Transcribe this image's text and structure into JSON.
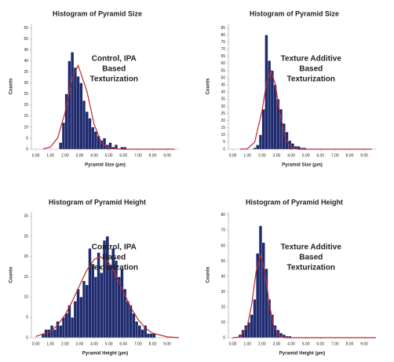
{
  "chart_data": [
    {
      "type": "histogram",
      "title": "Histogram of Pyramid Size",
      "annotation": [
        "Control, IPA",
        "Based",
        "Texturization"
      ],
      "xlabel": "Pyramid Size (µm)",
      "ylabel": "Counts",
      "color": "#1f2b6f",
      "bins": [
        1.6,
        1.8,
        2.0,
        2.2,
        2.4,
        2.6,
        2.8,
        3.0,
        3.2,
        3.4,
        3.6,
        3.8,
        4.0,
        4.2,
        4.4,
        4.6,
        4.8,
        5.0,
        5.2,
        5.4,
        5.6,
        5.8,
        6.0,
        6.2
      ],
      "counts": [
        3,
        12,
        25,
        40,
        44,
        37,
        33,
        30,
        22,
        17,
        14,
        10,
        8,
        6,
        4,
        5,
        2,
        3,
        1,
        2,
        0,
        1,
        1
      ],
      "curve": {
        "color": "#c0282e",
        "x": [
          0.5,
          1,
          1.5,
          2,
          2.5,
          2.9,
          3.5,
          4,
          4.5,
          5,
          6,
          9.5
        ],
        "y": [
          0.1,
          1,
          5.1,
          16.6,
          32.3,
          38,
          26.3,
          11.1,
          2.8,
          0.4,
          0,
          0
        ]
      },
      "xlim": [
        -0.3,
        9.8
      ],
      "ylim": [
        0,
        57
      ],
      "xticks": [
        {
          "value": 0,
          "label": "0.00"
        },
        {
          "value": 1,
          "label": "1.00"
        },
        {
          "value": 2,
          "label": "2.00"
        },
        {
          "value": 3,
          "label": "3.00"
        },
        {
          "value": 4,
          "label": "4.00"
        },
        {
          "value": 5,
          "label": "5.00"
        },
        {
          "value": 6,
          "label": "6.00"
        },
        {
          "value": 7,
          "label": "7.00"
        },
        {
          "value": 8,
          "label": "8.00"
        },
        {
          "value": 9,
          "label": "9.00"
        }
      ],
      "yticks": [
        0,
        5,
        10,
        15,
        20,
        25,
        30,
        35,
        40,
        45,
        50,
        55
      ]
    },
    {
      "type": "histogram",
      "title": "Histogram of Pyramid Size",
      "annotation": [
        "Texture Additive",
        "Based",
        "Texturization"
      ],
      "xlabel": "Pyramid Size (µm)",
      "ylabel": "Counts",
      "color": "#1f2b6f",
      "bins": [
        1.4,
        1.6,
        1.8,
        2.0,
        2.2,
        2.4,
        2.6,
        2.8,
        3.0,
        3.2,
        3.4,
        3.6,
        3.8,
        4.0,
        4.2,
        4.4,
        4.6,
        4.8,
        5.0
      ],
      "counts": [
        1,
        3,
        10,
        28,
        80,
        62,
        55,
        45,
        35,
        28,
        18,
        12,
        6,
        4,
        2,
        2,
        1,
        1
      ],
      "curve": {
        "color": "#c0282e",
        "x": [
          0.5,
          1,
          1.5,
          2,
          2.3,
          2.6,
          2.9,
          3.2,
          3.6,
          4,
          4.5,
          5,
          9.5
        ],
        "y": [
          0,
          0.3,
          4.9,
          26.8,
          45.9,
          55,
          45.9,
          26.8,
          7.4,
          1.1,
          0,
          0,
          0
        ]
      },
      "xlim": [
        -0.3,
        9.8
      ],
      "ylim": [
        0,
        88
      ],
      "xticks": [
        {
          "value": 0,
          "label": "0.00"
        },
        {
          "value": 1,
          "label": "1.00"
        },
        {
          "value": 2,
          "label": "2.00"
        },
        {
          "value": 3,
          "label": "3.00"
        },
        {
          "value": 4,
          "label": "4.00"
        },
        {
          "value": 5,
          "label": "5.00"
        },
        {
          "value": 6,
          "label": "6.00"
        },
        {
          "value": 7,
          "label": "7.00"
        },
        {
          "value": 8,
          "label": "8.00"
        },
        {
          "value": 9,
          "label": "9.00"
        }
      ],
      "yticks": [
        0,
        5,
        10,
        15,
        20,
        25,
        30,
        35,
        40,
        45,
        50,
        55,
        60,
        65,
        70,
        75,
        80,
        85
      ]
    },
    {
      "type": "histogram",
      "title": "Histogram of Pyramid Height",
      "annotation": [
        "Control, IPA",
        "Based",
        "Texturization"
      ],
      "xlabel": "Pyramid Height (µm)",
      "ylabel": "Counts",
      "color": "#1f2b6f",
      "bins": [
        0.4,
        0.6,
        0.8,
        1.0,
        1.2,
        1.4,
        1.6,
        1.8,
        2.0,
        2.2,
        2.4,
        2.6,
        2.8,
        3.0,
        3.2,
        3.4,
        3.6,
        3.8,
        4.0,
        4.2,
        4.4,
        4.6,
        4.8,
        5.0,
        5.2,
        5.4,
        5.6,
        5.8,
        6.0,
        6.2,
        6.4,
        6.6,
        6.8,
        7.0,
        7.2,
        7.4,
        7.6,
        7.8,
        8.0,
        8.2
      ],
      "counts": [
        1,
        2,
        2,
        3,
        2,
        4,
        3,
        5,
        6,
        8,
        5,
        9,
        12,
        10,
        14,
        13,
        22,
        18,
        15,
        21,
        16,
        24,
        25,
        18,
        22,
        19,
        15,
        17,
        12,
        9,
        8,
        6,
        4,
        3,
        2,
        3,
        1,
        1,
        1
      ],
      "curve": {
        "color": "#c0282e",
        "x": [
          0,
          1,
          1.5,
          2,
          2.5,
          3,
          3.5,
          4,
          4.4,
          5,
          5.5,
          6,
          6.5,
          7,
          7.5,
          8,
          9,
          9.8
        ],
        "y": [
          0.3,
          1.5,
          3.1,
          5.6,
          9,
          12.9,
          16.7,
          19.3,
          20,
          18.5,
          15.3,
          11.3,
          7.5,
          4.5,
          2.4,
          1.1,
          0.2,
          0
        ]
      },
      "xlim": [
        -0.3,
        9.8
      ],
      "ylim": [
        0,
        31
      ],
      "xticks": [
        {
          "value": 0,
          "label": "0.00"
        },
        {
          "value": 1,
          "label": "1.00"
        },
        {
          "value": 2,
          "label": "2.00"
        },
        {
          "value": 3,
          "label": "3.00"
        },
        {
          "value": 4,
          "label": "4.00"
        },
        {
          "value": 5,
          "label": "5.00"
        },
        {
          "value": 6,
          "label": "6.00"
        },
        {
          "value": 7,
          "label": "7.00"
        },
        {
          "value": 8,
          "label": "8.00"
        },
        {
          "value": 9,
          "label": "9.00"
        }
      ],
      "yticks": [
        0,
        5,
        10,
        15,
        20,
        25,
        30
      ]
    },
    {
      "type": "histogram",
      "title": "Histogram of Pyramid Height",
      "annotation": [
        "Texture Additive",
        "Based",
        "Texturization"
      ],
      "xlabel": "Pyramid Height (µm)",
      "ylabel": "Counts",
      "color": "#1f2b6f",
      "bins": [
        0.4,
        0.6,
        0.8,
        1.0,
        1.2,
        1.4,
        1.6,
        1.8,
        2.0,
        2.2,
        2.4,
        2.6,
        2.8,
        3.0,
        3.2,
        3.4,
        3.6,
        3.8,
        4.0
      ],
      "counts": [
        2,
        5,
        8,
        10,
        15,
        25,
        55,
        73,
        62,
        45,
        25,
        15,
        8,
        5,
        3,
        2,
        1,
        1
      ],
      "curve": {
        "color": "#c0282e",
        "x": [
          0,
          0.5,
          1,
          1.3,
          1.6,
          1.9,
          2.2,
          2.5,
          2.8,
          3.2,
          3.6,
          4,
          5,
          9.8
        ],
        "y": [
          0,
          0.4,
          7.3,
          22.2,
          43.2,
          54,
          43.2,
          22.2,
          7.3,
          0.8,
          0,
          0,
          0,
          0
        ]
      },
      "xlim": [
        -0.3,
        9.8
      ],
      "ylim": [
        0,
        82
      ],
      "xticks": [
        {
          "value": 0,
          "label": "0.00"
        },
        {
          "value": 1,
          "label": "1.00"
        },
        {
          "value": 2,
          "label": "2.00"
        },
        {
          "value": 3,
          "label": "3.00"
        },
        {
          "value": 4,
          "label": "4.00"
        },
        {
          "value": 5,
          "label": "5.00"
        },
        {
          "value": 6,
          "label": "6.00"
        },
        {
          "value": 7,
          "label": "7.00"
        },
        {
          "value": 8,
          "label": "8.00"
        },
        {
          "value": 9,
          "label": "9.00"
        }
      ],
      "yticks": [
        0,
        10,
        20,
        30,
        40,
        50,
        60,
        70,
        80
      ]
    }
  ]
}
